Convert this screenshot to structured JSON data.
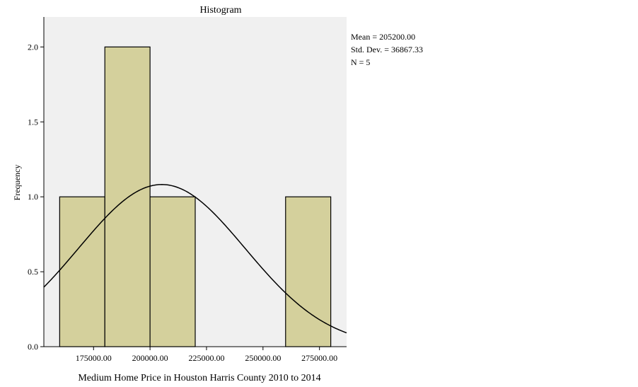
{
  "chart_data": {
    "type": "bar",
    "title": "Histogram",
    "xlabel": "Medium Home Price in Houston Harris County 2010 to 2014",
    "ylabel": "Frequency",
    "xlim": [
      153000,
      287000
    ],
    "ylim": [
      0,
      2.2
    ],
    "xticks": [
      175000,
      200000,
      225000,
      250000,
      275000
    ],
    "xtick_labels": [
      "175000.00",
      "200000.00",
      "225000.00",
      "250000.00",
      "275000.00"
    ],
    "yticks": [
      0,
      0.5,
      1.0,
      1.5,
      2.0
    ],
    "ytick_labels": [
      "0.0",
      "0.5",
      "1.0",
      "1.5",
      "2.0"
    ],
    "bins": [
      {
        "start": 160000,
        "end": 180000,
        "count": 1
      },
      {
        "start": 180000,
        "end": 200000,
        "count": 2
      },
      {
        "start": 200000,
        "end": 220000,
        "count": 1
      },
      {
        "start": 220000,
        "end": 240000,
        "count": 0
      },
      {
        "start": 240000,
        "end": 260000,
        "count": 0
      },
      {
        "start": 260000,
        "end": 280000,
        "count": 1
      }
    ],
    "normal_curve": {
      "mean": 205200,
      "std": 36867.33,
      "n": 5,
      "bin_width": 20000
    },
    "stats": [
      "Mean = 205200.00",
      "Std. Dev. = 36867.33",
      "N = 5"
    ],
    "grid": false,
    "colors": {
      "bar_fill": "#d4d09c",
      "bar_stroke": "#000000",
      "plot_bg": "#f0f0f0",
      "curve": "#000000"
    }
  }
}
